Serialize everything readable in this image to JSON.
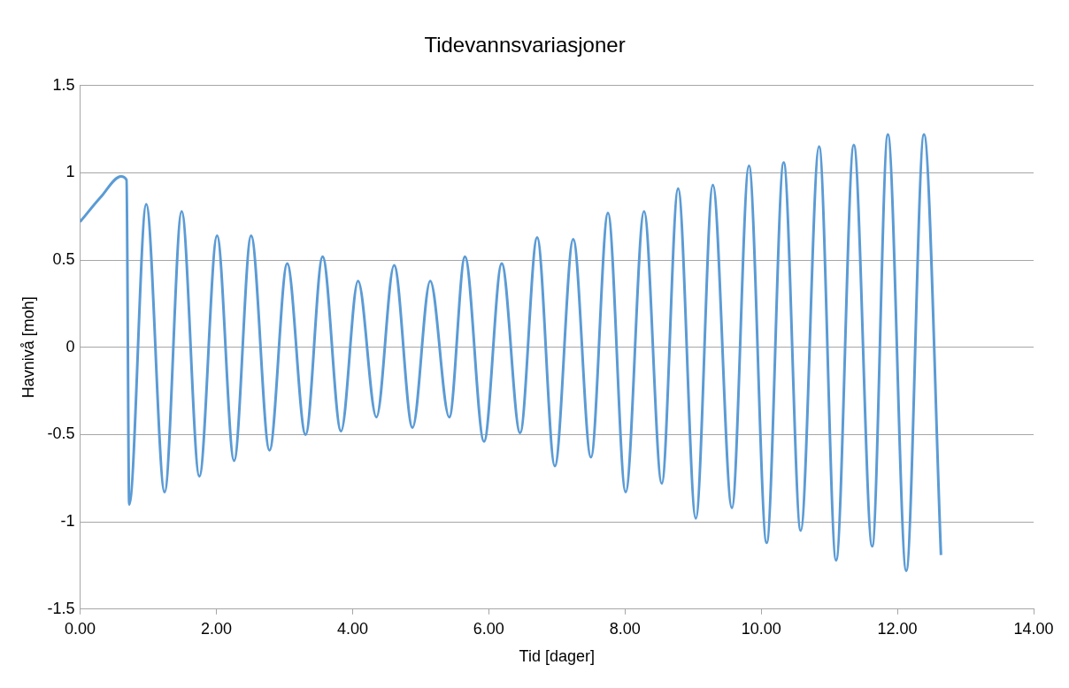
{
  "chart_data": {
    "type": "line",
    "title": "Tidevannsvariasjoner",
    "xlabel": "Tid [dager]",
    "ylabel": "Havnivå [moh]",
    "series": [
      {
        "color": "#5b9bd5",
        "x": [
          0,
          0.3,
          0.6,
          0.68,
          0.72,
          0.97,
          1.24,
          1.49,
          1.75,
          2.01,
          2.26,
          2.51,
          2.78,
          3.04,
          3.31,
          3.56,
          3.83,
          4.08,
          4.35,
          4.61,
          4.88,
          5.14,
          5.42,
          5.65,
          5.93,
          6.19,
          6.46,
          6.71,
          6.97,
          7.24,
          7.5,
          7.75,
          8.01,
          8.28,
          8.54,
          8.78,
          9.04,
          9.29,
          9.57,
          9.82,
          10.08,
          10.33,
          10.58,
          10.85,
          11.1,
          11.36,
          11.63,
          11.86,
          12.13,
          12.39,
          12.64
        ],
        "values": [
          0.72,
          0.86,
          0.98,
          0.96,
          -0.9,
          0.82,
          -0.83,
          0.78,
          -0.74,
          0.64,
          -0.65,
          0.64,
          -0.59,
          0.48,
          -0.5,
          0.52,
          -0.48,
          0.38,
          -0.4,
          0.47,
          -0.46,
          0.38,
          -0.4,
          0.52,
          -0.54,
          0.48,
          -0.49,
          0.63,
          -0.68,
          0.62,
          -0.63,
          0.77,
          -0.83,
          0.78,
          -0.78,
          0.91,
          -0.98,
          0.93,
          -0.92,
          1.04,
          -1.12,
          1.06,
          -1.05,
          1.15,
          -1.22,
          1.16,
          -1.14,
          1.22,
          -1.28,
          1.22,
          -1.19
        ]
      }
    ],
    "xlim": [
      0,
      14
    ],
    "xticks": [
      {
        "value": 0,
        "label": "0.00"
      },
      {
        "value": 2,
        "label": "2.00"
      },
      {
        "value": 4,
        "label": "4.00"
      },
      {
        "value": 6,
        "label": "6.00"
      },
      {
        "value": 8,
        "label": "8.00"
      },
      {
        "value": 10,
        "label": "10.00"
      },
      {
        "value": 12,
        "label": "12.00"
      },
      {
        "value": 14,
        "label": "14.00"
      }
    ],
    "ylim": [
      -1.5,
      1.5
    ],
    "yticks": [
      -1.5,
      -1,
      -0.5,
      0,
      0.5,
      1,
      1.5
    ],
    "grid": "y",
    "legend": false,
    "marker": "none",
    "line_style": "solid"
  }
}
